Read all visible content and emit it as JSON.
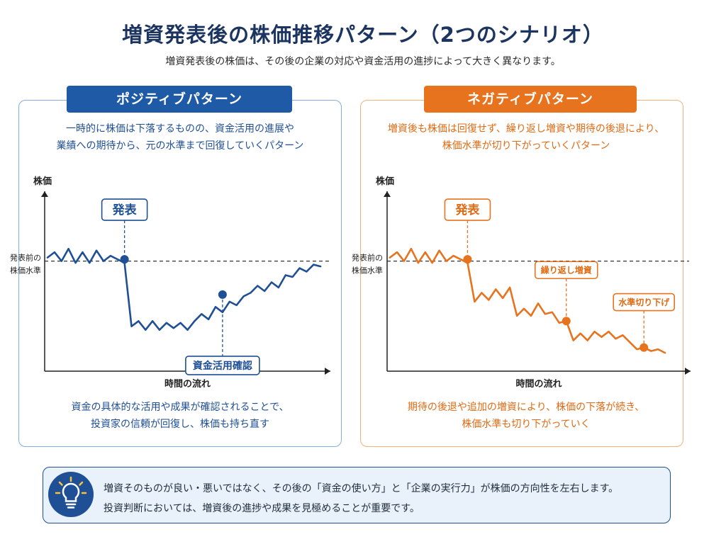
{
  "header": {
    "title": "増資発表後の株価推移パターン（2つのシナリオ）",
    "subtitle": "増資発表後の株価は、その後の企業の対応や資金活用の進捗によって大きく異なります。"
  },
  "positive": {
    "tab": "ポジティブパターン",
    "desc_line1": "一時的に株価は下落するものの、資金活用の進展や",
    "desc_line2": "業績への期待から、元の水準まで回復していくパターン",
    "bottom_line1": "資金の具体的な活用や成果が確認されることで、",
    "bottom_line2": "投資家の信頼が回復し、株価も持ち直す",
    "color": "#1f4f95"
  },
  "negative": {
    "tab": "ネガティブパターン",
    "desc_line1": "増資後も株価は回復せず、繰り返し増資や期待の後退により、",
    "desc_line2": "株価水準が切り下がっていくパターン",
    "bottom_line1": "期待の後退や追加の増資により、株価の下落が続き、",
    "bottom_line2": "株価水準も切り下がっていく",
    "color": "#e8731e"
  },
  "tip": {
    "line1": "増資そのものが良い・悪いではなく、その後の「資金の使い方」と「企業の実行力」が株価の方向性を左右します。",
    "line2": "投資判断においては、増資後の進捗や成果を見極めることが重要です。",
    "icon": "lightbulb-icon"
  },
  "chart_data": [
    {
      "type": "line",
      "ylabel": "株価",
      "xlabel": "時間の流れ",
      "reference_label_line1": "発表前の",
      "reference_label_line2": "株価水準",
      "reference_value": 60,
      "ylim": [
        0,
        100
      ],
      "xlim": [
        0,
        40
      ],
      "series": [
        {
          "x": [
            0,
            1,
            2,
            3,
            4,
            5,
            6,
            7,
            8,
            9,
            10,
            11,
            12,
            13,
            14,
            15,
            16,
            17,
            18,
            19,
            20,
            21,
            22,
            23,
            24,
            25,
            26,
            27,
            28,
            29,
            30,
            31,
            32,
            33,
            34,
            35,
            36,
            37,
            38,
            39
          ],
          "y": [
            62,
            65,
            60,
            67,
            59,
            65,
            59,
            66,
            60,
            63,
            61,
            59,
            23,
            26,
            21,
            26,
            21,
            25,
            22,
            25,
            21,
            26,
            30,
            27,
            34,
            31,
            37,
            35,
            40,
            42,
            46,
            43,
            48,
            45,
            52,
            51,
            56,
            54,
            58,
            57
          ]
        }
      ],
      "annotations": [
        {
          "label": "発表",
          "x": 11,
          "y": 61
        },
        {
          "label": "資金活用確認",
          "x": 25,
          "y": 41
        }
      ]
    },
    {
      "type": "line",
      "ylabel": "株価",
      "xlabel": "時間の流れ",
      "reference_label_line1": "発表前の",
      "reference_label_line2": "株価水準",
      "reference_value": 60,
      "ylim": [
        0,
        100
      ],
      "xlim": [
        0,
        40
      ],
      "series": [
        {
          "x": [
            0,
            1,
            2,
            3,
            4,
            5,
            6,
            7,
            8,
            9,
            10,
            11,
            12,
            13,
            14,
            15,
            16,
            17,
            18,
            19,
            20,
            21,
            22,
            23,
            24,
            25,
            26,
            27,
            28,
            29,
            30,
            31,
            32,
            33,
            34,
            35,
            36,
            37,
            38,
            39
          ],
          "y": [
            62,
            65,
            60,
            67,
            59,
            65,
            59,
            66,
            60,
            63,
            61,
            59,
            37,
            42,
            38,
            44,
            39,
            45,
            29,
            33,
            29,
            36,
            30,
            31,
            25,
            26,
            15,
            19,
            15,
            20,
            17,
            20,
            16,
            18,
            14,
            10,
            11,
            9,
            10,
            8
          ],
          "ylevels_note": ""
        }
      ],
      "annotations": [
        {
          "label": "発表",
          "x": 11,
          "y": 61
        },
        {
          "label": "繰り返し増資",
          "x": 25,
          "y": 26
        },
        {
          "label": "水準切り下げ",
          "x": 36,
          "y": 11
        }
      ]
    }
  ]
}
